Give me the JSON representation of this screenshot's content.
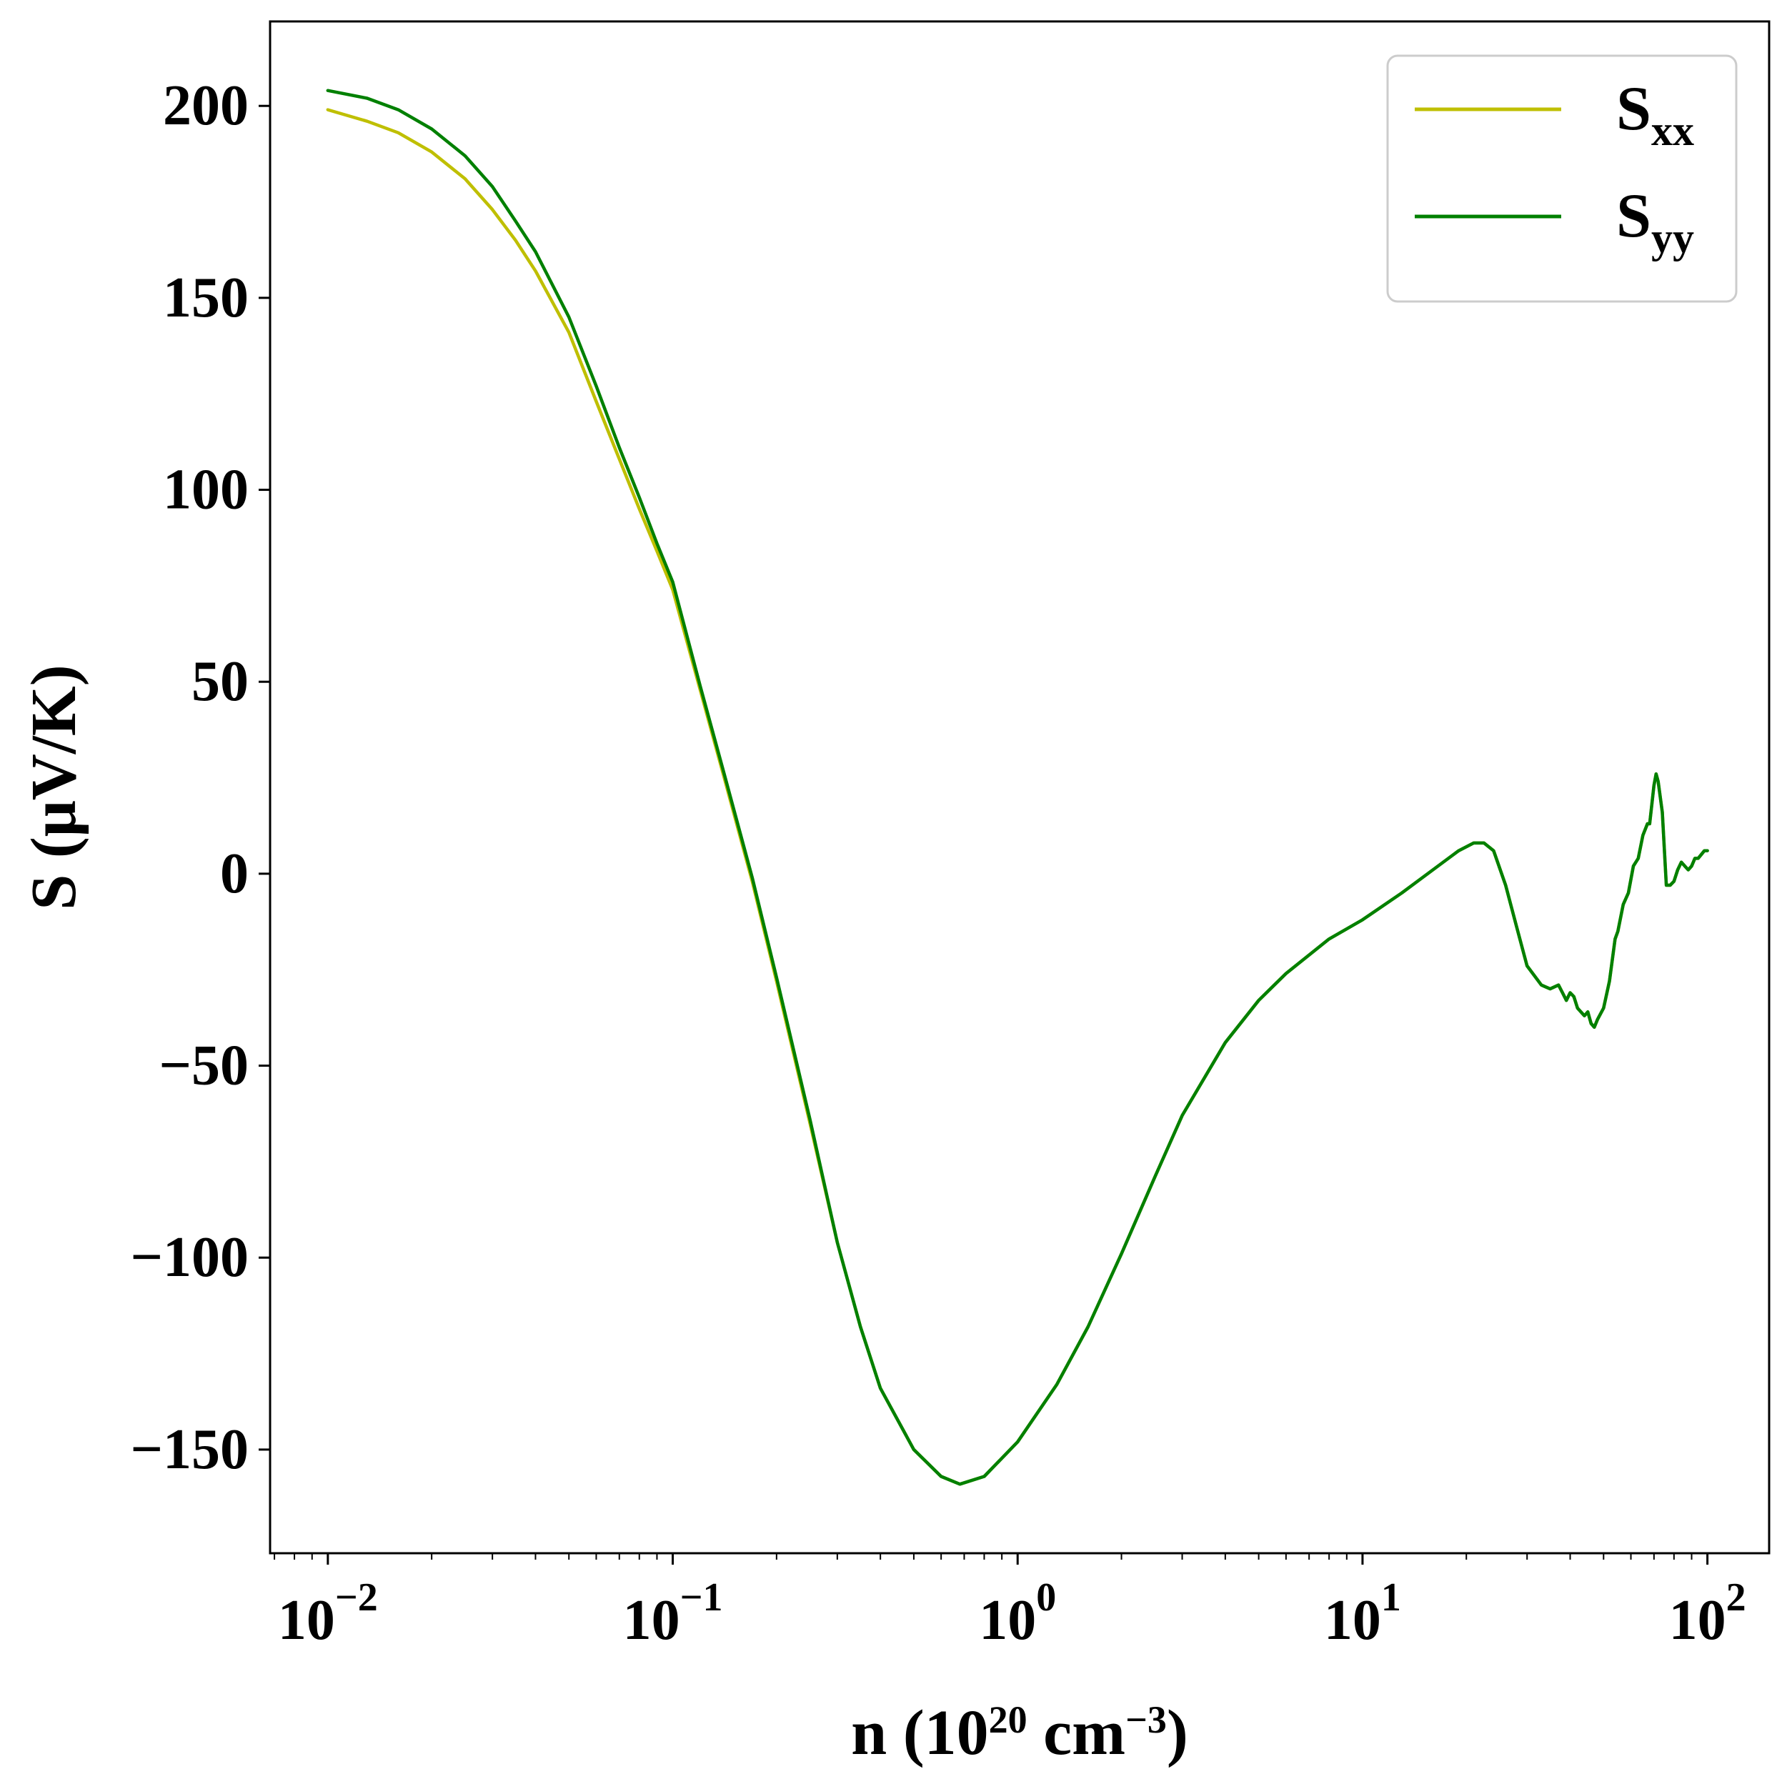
{
  "chart_data": {
    "type": "line",
    "xlabel": {
      "prefix": "n (10",
      "sup1": "20",
      "mid": " cm",
      "sup2": "−3",
      "suffix": ")"
    },
    "ylabel": "S (μV/K)",
    "xscale": "log",
    "xlim": [
      0.0068,
      151
    ],
    "ylim": [
      -177,
      222
    ],
    "x_ticks": [
      {
        "value": 0.01,
        "base": "10",
        "exp": "−2"
      },
      {
        "value": 0.1,
        "base": "10",
        "exp": "−1"
      },
      {
        "value": 1,
        "base": "10",
        "exp": "0"
      },
      {
        "value": 10,
        "base": "10",
        "exp": "1"
      },
      {
        "value": 100,
        "base": "10",
        "exp": "2"
      }
    ],
    "y_ticks": [
      {
        "value": 200,
        "label": "200"
      },
      {
        "value": 150,
        "label": "150"
      },
      {
        "value": 100,
        "label": "100"
      },
      {
        "value": 50,
        "label": "50"
      },
      {
        "value": 0,
        "label": "0"
      },
      {
        "value": -50,
        "label": "−50"
      },
      {
        "value": -100,
        "label": "−100"
      },
      {
        "value": -150,
        "label": "−150"
      }
    ],
    "grid": false,
    "legend_position": "top-right",
    "series": [
      {
        "name": {
          "main": "S",
          "sub": "xx"
        },
        "color": "#bfbf00",
        "x": [
          0.01,
          0.013,
          0.016,
          0.02,
          0.025,
          0.03,
          0.035,
          0.04,
          0.05,
          0.06,
          0.07,
          0.08,
          0.09,
          0.1,
          0.12,
          0.14,
          0.17,
          0.2,
          0.25,
          0.3,
          0.35,
          0.4,
          0.5,
          0.6,
          0.68,
          0.8,
          1.0,
          1.3,
          1.6,
          2.0,
          2.5,
          3.0,
          4.0,
          5.0,
          6.0,
          8.0,
          10,
          13,
          16,
          19,
          21,
          22.5,
          24,
          26,
          28,
          30,
          33,
          35,
          37,
          38,
          39,
          40,
          41,
          42,
          44,
          45,
          46,
          47,
          48,
          50,
          52,
          54,
          55,
          57,
          59,
          61,
          63,
          65,
          67,
          68,
          69,
          70,
          71,
          72,
          73,
          74,
          76,
          78,
          80,
          82,
          84,
          86,
          88,
          90,
          92,
          94,
          96,
          98,
          100
        ],
        "y": [
          199,
          196,
          193,
          188,
          181,
          173,
          165,
          157,
          141,
          123,
          108,
          95,
          84,
          74,
          48,
          26,
          -2,
          -28,
          -65,
          -96,
          -118,
          -134,
          -150,
          -157,
          -159,
          -157,
          -148,
          -133,
          -118,
          -99,
          -79,
          -63,
          -44,
          -33,
          -26,
          -17,
          -12,
          -5,
          1,
          6,
          8,
          8,
          6,
          -3,
          -14,
          -24,
          -29,
          -30,
          -29,
          -31,
          -33,
          -31,
          -32,
          -35,
          -37,
          -36,
          -39,
          -40,
          -38,
          -35,
          -28,
          -17,
          -15,
          -8,
          -5,
          2,
          4,
          10,
          13,
          13,
          18,
          23,
          26,
          24,
          20,
          16,
          -3,
          -3,
          -2,
          1,
          3,
          2,
          1,
          2,
          4,
          4,
          5,
          6,
          6
        ]
      },
      {
        "name": {
          "main": "S",
          "sub": "yy"
        },
        "color": "#008000",
        "x": [
          0.01,
          0.013,
          0.016,
          0.02,
          0.025,
          0.03,
          0.035,
          0.04,
          0.05,
          0.06,
          0.07,
          0.08,
          0.09,
          0.1,
          0.12,
          0.14,
          0.17,
          0.2,
          0.25,
          0.3,
          0.35,
          0.4,
          0.5,
          0.6,
          0.68,
          0.8,
          1.0,
          1.3,
          1.6,
          2.0,
          2.5,
          3.0,
          4.0,
          5.0,
          6.0,
          8.0,
          10,
          13,
          16,
          19,
          21,
          22.5,
          24,
          26,
          28,
          30,
          33,
          35,
          37,
          38,
          39,
          40,
          41,
          42,
          44,
          45,
          46,
          47,
          48,
          50,
          52,
          54,
          55,
          57,
          59,
          61,
          63,
          65,
          67,
          68,
          69,
          70,
          71,
          72,
          73,
          74,
          76,
          78,
          80,
          82,
          84,
          86,
          88,
          90,
          92,
          94,
          96,
          98,
          100
        ],
        "y": [
          204,
          202,
          199,
          194,
          187,
          179,
          170,
          162,
          145,
          127,
          111,
          98,
          86,
          76,
          49,
          27,
          -1,
          -27,
          -64,
          -96,
          -118,
          -134,
          -150,
          -157,
          -159,
          -157,
          -148,
          -133,
          -118,
          -99,
          -79,
          -63,
          -44,
          -33,
          -26,
          -17,
          -12,
          -5,
          1,
          6,
          8,
          8,
          6,
          -3,
          -14,
          -24,
          -29,
          -30,
          -29,
          -31,
          -33,
          -31,
          -32,
          -35,
          -37,
          -36,
          -39,
          -40,
          -38,
          -35,
          -28,
          -17,
          -15,
          -8,
          -5,
          2,
          4,
          10,
          13,
          13,
          18,
          23,
          26,
          24,
          20,
          16,
          -3,
          -3,
          -2,
          1,
          3,
          2,
          1,
          2,
          4,
          4,
          5,
          6,
          6
        ]
      }
    ]
  }
}
